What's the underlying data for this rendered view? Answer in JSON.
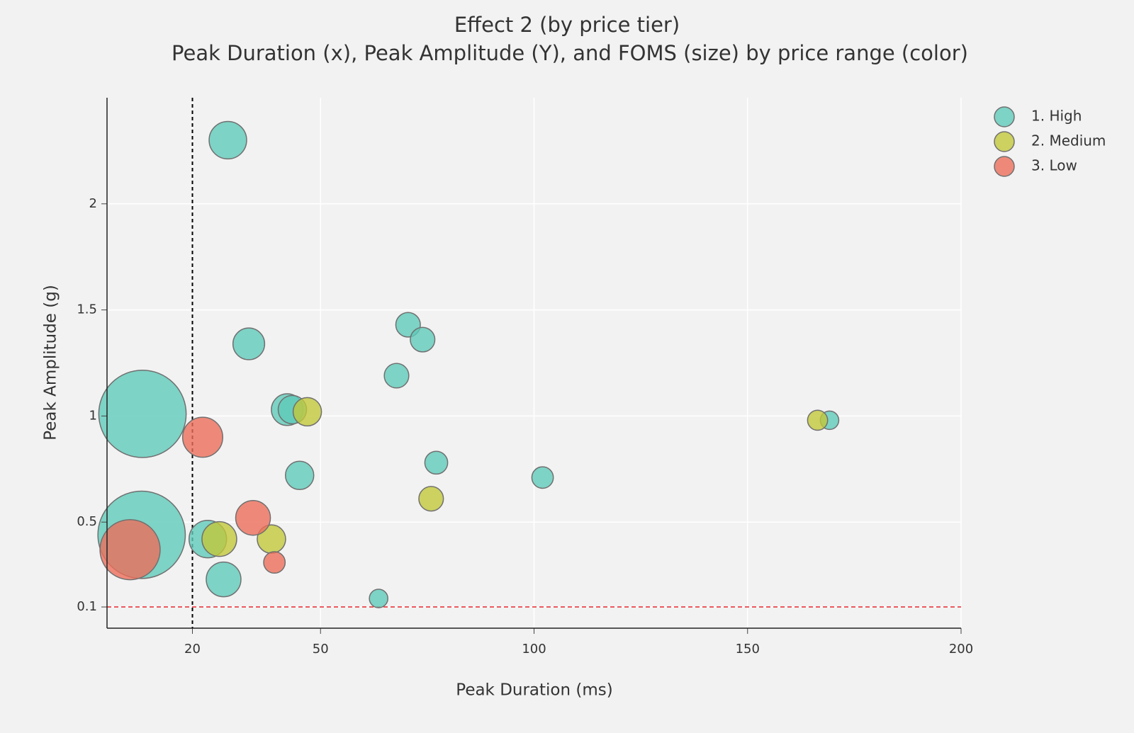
{
  "chart_data": {
    "type": "scatter",
    "title": "Effect 2 (by price tier)",
    "subtitle": "Peak Duration (x), Peak Amplitude (Y), and FOMS (size) by price range (color)",
    "x_label": "Peak Duration (ms)",
    "y_label": "Peak Amplitude (g)",
    "xlim": [
      0,
      200
    ],
    "xticks": [
      20,
      50,
      100,
      150,
      200
    ],
    "ylim": [
      0,
      2.5
    ],
    "yticks": [
      0.1,
      0.5,
      1,
      1.5,
      2
    ],
    "grid": true,
    "legend": "top-right",
    "vline": {
      "value": 20,
      "color": "#000000"
    },
    "hline": {
      "value": 0.1,
      "color": "#e8262a"
    },
    "series": [
      {
        "name": "1. High",
        "color": "#5fcbb9",
        "x": [
          28.3,
          33.2,
          70.5,
          73.9,
          67.8,
          8.3,
          42.2,
          43.4,
          169.2,
          77.1,
          45.1,
          102.0,
          8.1,
          23.6,
          27.3,
          63.6
        ],
        "y": [
          2.3,
          1.34,
          1.43,
          1.36,
          1.19,
          1.01,
          1.03,
          1.03,
          0.98,
          0.78,
          0.72,
          0.71,
          0.44,
          0.42,
          0.23,
          0.14
        ],
        "size": [
          7,
          5,
          3,
          3,
          3,
          38,
          5,
          4,
          1.7,
          2.6,
          4,
          2.3,
          38,
          7,
          6,
          1.7
        ]
      },
      {
        "name": "2. Medium",
        "color": "#c2c83a",
        "x": [
          46.9,
          166.4,
          75.9,
          26.3,
          38.5
        ],
        "y": [
          1.02,
          0.98,
          0.61,
          0.42,
          0.42
        ],
        "size": [
          4,
          2,
          3,
          6,
          4
        ]
      },
      {
        "name": "3. Low",
        "color": "#ec6e5a",
        "x": [
          22.4,
          34.2,
          39.2,
          5.4
        ],
        "y": [
          0.9,
          0.52,
          0.31,
          0.37
        ],
        "size": [
          8,
          6,
          2.3,
          18
        ]
      }
    ]
  }
}
